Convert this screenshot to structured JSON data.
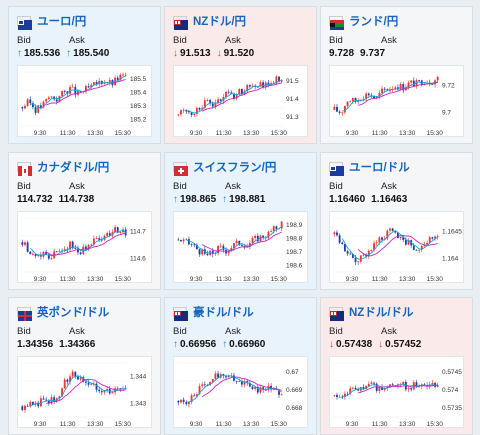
{
  "cards": [
    {
      "pair": "ユーロ/円",
      "state": "up",
      "flag": "eu",
      "bid_label": "Bid",
      "ask_label": "Ask",
      "bid": "185.536",
      "ask": "185.540",
      "bid_dir": "up",
      "ask_dir": "up",
      "yticks": [
        "185.5",
        "185.4",
        "185.3",
        "185.2"
      ],
      "xticks": [
        "9:30",
        "11:30",
        "13:30",
        "15:30"
      ],
      "trend": [
        0.35,
        0.45,
        0.3,
        0.4,
        0.55,
        0.5,
        0.62,
        0.7,
        0.58,
        0.66,
        0.72,
        0.8,
        0.85,
        0.78,
        0.9,
        0.95
      ]
    },
    {
      "pair": "NZドル/円",
      "state": "down",
      "flag": "nz",
      "bid_label": "Bid",
      "ask_label": "Ask",
      "bid": "91.513",
      "ask": "91.520",
      "bid_dir": "down",
      "ask_dir": "down",
      "yticks": [
        "91.5",
        "91.4",
        "91.3"
      ],
      "xticks": [
        "9:30",
        "11:30",
        "13:30",
        "15:30"
      ],
      "trend": [
        0.2,
        0.3,
        0.25,
        0.35,
        0.45,
        0.4,
        0.5,
        0.6,
        0.55,
        0.65,
        0.7,
        0.75,
        0.8,
        0.72,
        0.85,
        0.9
      ]
    },
    {
      "pair": "ランド/円",
      "state": "neutral",
      "flag": "za",
      "bid_label": "Bid",
      "ask_label": "Ask",
      "bid": "9.728",
      "ask": "9.737",
      "bid_dir": "",
      "ask_dir": "",
      "yticks": [
        "9.72",
        "9.7"
      ],
      "xticks": [
        "9:30",
        "11:30",
        "13:30",
        "15:30"
      ],
      "trend": [
        0.3,
        0.25,
        0.5,
        0.45,
        0.55,
        0.6,
        0.5,
        0.65,
        0.7,
        0.75,
        0.72,
        0.8,
        0.78,
        0.85,
        0.82,
        0.88
      ]
    },
    {
      "pair": "カナダドル/円",
      "state": "neutral",
      "flag": "ca",
      "bid_label": "Bid",
      "ask_label": "Ask",
      "bid": "114.732",
      "ask": "114.738",
      "bid_dir": "",
      "ask_dir": "",
      "yticks": [
        "114.7",
        "114.6"
      ],
      "xticks": [
        "9:30",
        "11:30",
        "13:30",
        "15:30"
      ],
      "trend": [
        0.55,
        0.4,
        0.3,
        0.35,
        0.25,
        0.4,
        0.45,
        0.5,
        0.35,
        0.45,
        0.55,
        0.6,
        0.7,
        0.75,
        0.8,
        0.72
      ]
    },
    {
      "pair": "スイスフラン/円",
      "state": "up",
      "flag": "ch",
      "bid_label": "Bid",
      "ask_label": "Ask",
      "bid": "198.865",
      "ask": "198.881",
      "bid_dir": "up",
      "ask_dir": "up",
      "yticks": [
        "198.9",
        "198.8",
        "198.7",
        "198.6"
      ],
      "xticks": [
        "9:30",
        "11:30",
        "13:30",
        "15:30"
      ],
      "trend": [
        0.6,
        0.55,
        0.5,
        0.4,
        0.3,
        0.35,
        0.45,
        0.4,
        0.5,
        0.55,
        0.5,
        0.6,
        0.65,
        0.7,
        0.8,
        0.9
      ]
    },
    {
      "pair": "ユーロ/ドル",
      "state": "neutral",
      "flag": "eu",
      "bid_label": "Bid",
      "ask_label": "Ask",
      "bid": "1.16460",
      "ask": "1.16463",
      "bid_dir": "",
      "ask_dir": "",
      "yticks": [
        "1.1645",
        "1.164"
      ],
      "xticks": [
        "9:30",
        "11:30",
        "13:30",
        "15:30"
      ],
      "trend": [
        0.7,
        0.5,
        0.3,
        0.2,
        0.25,
        0.4,
        0.55,
        0.65,
        0.75,
        0.7,
        0.6,
        0.5,
        0.45,
        0.55,
        0.6,
        0.7
      ]
    },
    {
      "pair": "英ポンド/ドル",
      "state": "neutral",
      "flag": "gb",
      "bid_label": "Bid",
      "ask_label": "Ask",
      "bid": "1.34356",
      "ask": "1.34366",
      "bid_dir": "",
      "ask_dir": "",
      "yticks": [
        "1.344",
        "1.343"
      ],
      "xticks": [
        "9:30",
        "11:30",
        "13:30",
        "15:30"
      ],
      "trend": [
        0.2,
        0.25,
        0.22,
        0.3,
        0.28,
        0.35,
        0.6,
        0.8,
        0.75,
        0.7,
        0.6,
        0.55,
        0.5,
        0.45,
        0.5,
        0.48
      ]
    },
    {
      "pair": "豪ドル/ドル",
      "state": "up",
      "flag": "au",
      "bid_label": "Bid",
      "ask_label": "Ask",
      "bid": "0.66956",
      "ask": "0.66960",
      "bid_dir": "up",
      "ask_dir": "up",
      "yticks": [
        "0.67",
        "0.669",
        "0.668"
      ],
      "xticks": [
        "9:30",
        "11:30",
        "13:30",
        "15:30"
      ],
      "trend": [
        0.3,
        0.2,
        0.35,
        0.5,
        0.6,
        0.7,
        0.8,
        0.75,
        0.7,
        0.65,
        0.6,
        0.55,
        0.5,
        0.52,
        0.48,
        0.45
      ]
    },
    {
      "pair": "NZドル/ドル",
      "state": "down",
      "flag": "nz",
      "bid_label": "Bid",
      "ask_label": "Ask",
      "bid": "0.57438",
      "ask": "0.57452",
      "bid_dir": "down",
      "ask_dir": "down",
      "yticks": [
        "0.5745",
        "0.574",
        "0.5735"
      ],
      "xticks": [
        "9:30",
        "11:30",
        "13:30",
        "15:30"
      ],
      "trend": [
        0.4,
        0.35,
        0.5,
        0.55,
        0.5,
        0.6,
        0.55,
        0.5,
        0.6,
        0.65,
        0.6,
        0.55,
        0.6,
        0.62,
        0.58,
        0.55
      ]
    }
  ],
  "colors": {
    "up_candle": "#e53935",
    "down_candle": "#1e3fa8",
    "ma1": "#1ea1d8",
    "ma2": "#c02cc0",
    "pair": "#1565c0"
  }
}
